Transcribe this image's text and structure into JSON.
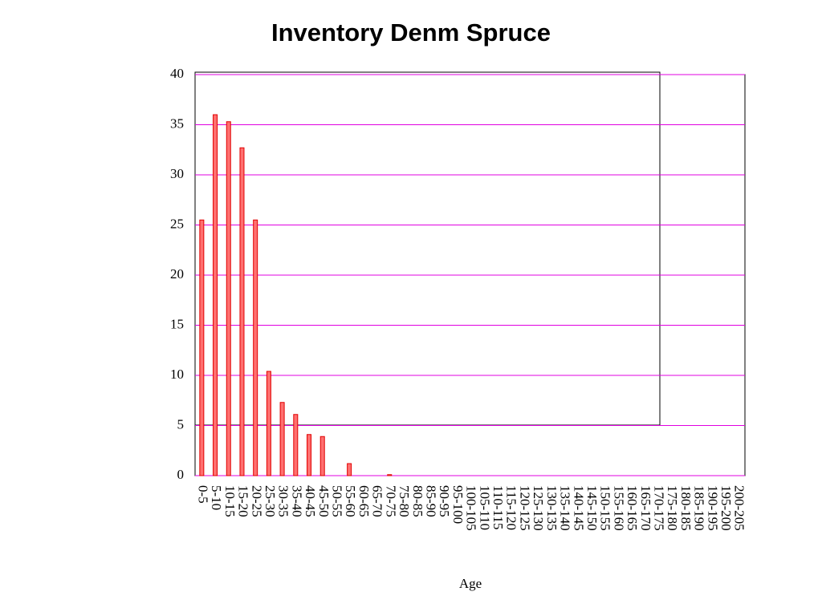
{
  "chart_data": {
    "type": "bar",
    "title": "Inventory Denm Spruce",
    "x_label": "Age",
    "categories": [
      "0-5",
      "5-10",
      "10-15",
      "15-20",
      "20-25",
      "25-30",
      "30-35",
      "35-40",
      "40-45",
      "45-50",
      "50-55",
      "55-60",
      "60-65",
      "65-70",
      "70-75",
      "75-80",
      "80-85",
      "85-90",
      "90-95",
      "95-100",
      "100-105",
      "105-110",
      "110-115",
      "115-120",
      "120-125",
      "125-130",
      "130-135",
      "135-140",
      "140-145",
      "145-150",
      "150-155",
      "155-160",
      "160-165",
      "165-170",
      "170-175",
      "175-180",
      "180-185",
      "185-190",
      "190-195",
      "195-200",
      "200-205"
    ],
    "values": [
      25.5,
      36,
      35.3,
      32.7,
      25.5,
      10.4,
      7.3,
      6.1,
      4.1,
      3.9,
      0,
      1.2,
      0,
      0,
      0.1,
      0,
      0,
      0,
      0,
      0,
      0,
      0,
      0,
      0,
      0,
      0,
      0,
      0,
      0,
      0,
      0,
      0,
      0,
      0,
      0,
      0,
      0,
      0,
      0,
      0,
      0
    ],
    "color": "#ff7070",
    "edge_color": "#e00000",
    "grid_color": "#e000e0",
    "ylim": [
      0,
      40
    ],
    "yticks": [
      0,
      5,
      10,
      15,
      20,
      25,
      30,
      35,
      40
    ],
    "grid": true
  }
}
